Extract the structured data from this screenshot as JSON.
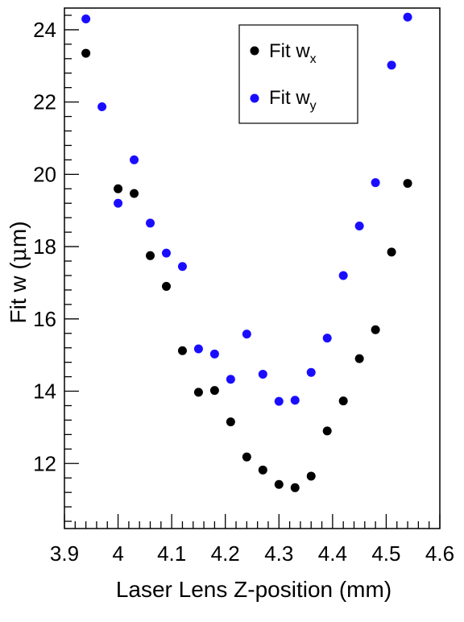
{
  "chart_data": {
    "type": "scatter",
    "title": "",
    "xlabel": "Laser Lens Z-position (mm)",
    "ylabel_parts": [
      "Fit w (",
      "μ",
      "m)"
    ],
    "xlim": [
      3.9,
      4.6
    ],
    "ylim": [
      10.2,
      24.6
    ],
    "x_ticks": [
      3.9,
      4.0,
      4.1,
      4.2,
      4.3,
      4.4,
      4.5,
      4.6
    ],
    "x_tick_labels": [
      "3.9",
      "4",
      "4.1",
      "4.2",
      "4.3",
      "4.4",
      "4.5",
      "4.6"
    ],
    "y_ticks": [
      12,
      14,
      16,
      18,
      20,
      22,
      24
    ],
    "y_tick_labels": [
      "12",
      "14",
      "16",
      "18",
      "20",
      "22",
      "24"
    ],
    "grid": false,
    "legend_position": "top-right",
    "series": [
      {
        "name": "Fit w",
        "subscript": "x",
        "color": "#000000",
        "x": [
          3.94,
          4.0,
          4.03,
          4.06,
          4.09,
          4.12,
          4.15,
          4.18,
          4.21,
          4.24,
          4.27,
          4.3,
          4.33,
          4.36,
          4.39,
          4.42,
          4.45,
          4.48,
          4.51,
          4.54
        ],
        "y": [
          23.35,
          19.6,
          19.47,
          17.75,
          16.9,
          15.12,
          13.97,
          14.02,
          13.15,
          12.18,
          11.82,
          11.42,
          11.33,
          11.65,
          12.9,
          13.73,
          14.9,
          15.7,
          17.85,
          19.75
        ]
      },
      {
        "name": "Fit w",
        "subscript": "y",
        "color": "#1a0dff",
        "x": [
          3.94,
          3.97,
          4.0,
          4.03,
          4.06,
          4.09,
          4.12,
          4.15,
          4.18,
          4.21,
          4.24,
          4.27,
          4.3,
          4.33,
          4.36,
          4.39,
          4.42,
          4.45,
          4.48,
          4.51,
          4.54
        ],
        "y": [
          24.3,
          21.87,
          19.2,
          20.4,
          18.65,
          17.82,
          17.45,
          15.17,
          15.03,
          14.33,
          15.58,
          14.47,
          13.72,
          13.75,
          14.52,
          15.47,
          17.2,
          18.57,
          19.77,
          23.02,
          24.35
        ]
      }
    ]
  }
}
